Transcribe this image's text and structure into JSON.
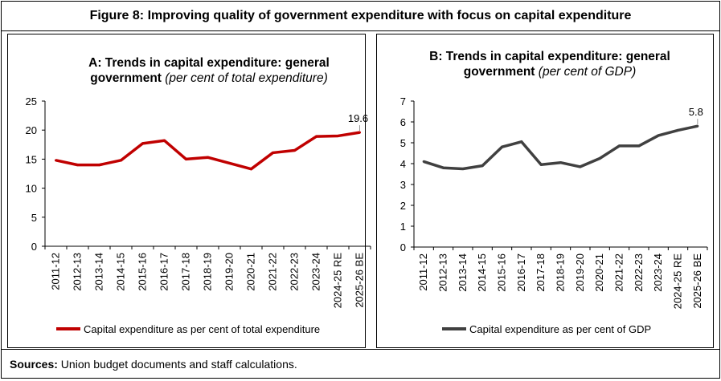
{
  "figure_title": "Figure 8: Improving quality of government expenditure with focus on capital expenditure",
  "sources_label": "Sources:",
  "sources_text": " Union budget documents and staff calculations.",
  "chart_data": [
    {
      "type": "line",
      "title_bold": "A: Trends in capital expenditure: general government",
      "title_italic": "(per cent of total expenditure)",
      "categories": [
        "2011-12",
        "2012-13",
        "2013-14",
        "2014-15",
        "2015-16",
        "2016-17",
        "2017-18",
        "2018-19",
        "2019-20",
        "2020-21",
        "2021-22",
        "2022-23",
        "2023-24",
        "2024-25 RE",
        "2025-26 BE"
      ],
      "series": [
        {
          "name": "Capital expenditure as per cent of total expenditure",
          "values": [
            14.8,
            14.0,
            14.0,
            14.8,
            17.7,
            18.2,
            15.0,
            15.3,
            14.3,
            13.3,
            16.1,
            16.5,
            18.9,
            19.0,
            19.6
          ],
          "color": "#c00000"
        }
      ],
      "data_label": "19.6",
      "ylim": [
        0,
        25
      ],
      "yticks": [
        0,
        5,
        10,
        15,
        20,
        25
      ],
      "legend": "bottom",
      "grid": false
    },
    {
      "type": "line",
      "title_bold": "B: Trends in capital expenditure: general government",
      "title_italic": "(per cent of GDP)",
      "categories": [
        "2011-12",
        "2012-13",
        "2013-14",
        "2014-15",
        "2015-16",
        "2016-17",
        "2017-18",
        "2018-19",
        "2019-20",
        "2020-21",
        "2021-22",
        "2022-23",
        "2023-24",
        "2024-25 RE",
        "2025-26 BE"
      ],
      "series": [
        {
          "name": "Capital expenditure as per cent of GDP",
          "values": [
            4.1,
            3.8,
            3.75,
            3.9,
            4.8,
            5.05,
            3.95,
            4.05,
            3.85,
            4.25,
            4.85,
            4.85,
            5.35,
            5.6,
            5.8
          ],
          "color": "#404040"
        }
      ],
      "data_label": "5.8",
      "ylim": [
        0,
        7
      ],
      "yticks": [
        0,
        1,
        2,
        3,
        4,
        5,
        6,
        7
      ],
      "legend": "bottom",
      "grid": false
    }
  ]
}
